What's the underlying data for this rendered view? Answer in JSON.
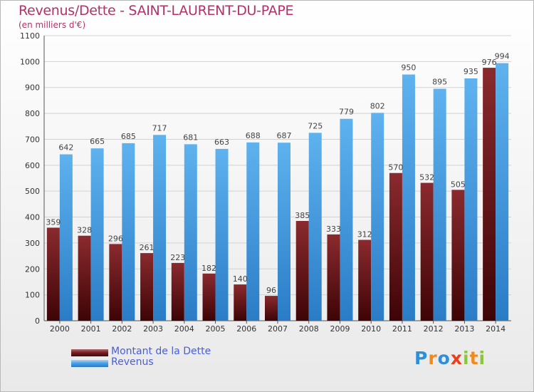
{
  "header": {
    "title": "Revenus/Dette - SAINT-LAURENT-DU-PAPE",
    "subtitle": "(en milliers d'€)"
  },
  "chart_data": {
    "type": "bar",
    "categories": [
      "2000",
      "2001",
      "2002",
      "2003",
      "2004",
      "2005",
      "2006",
      "2007",
      "2008",
      "2009",
      "2010",
      "2011",
      "2012",
      "2013",
      "2014"
    ],
    "series": [
      {
        "name": "Montant de la Dette",
        "color": "#7a1e22",
        "values": [
          359,
          328,
          296,
          261,
          223,
          182,
          140,
          96,
          385,
          333,
          312,
          570,
          532,
          505,
          976
        ]
      },
      {
        "name": "Revenus",
        "color": "#4aa3e8",
        "values": [
          642,
          665,
          685,
          717,
          681,
          663,
          688,
          687,
          725,
          779,
          802,
          950,
          895,
          935,
          994
        ]
      }
    ],
    "ylim": [
      0,
      1100
    ],
    "yticks": [
      0,
      100,
      200,
      300,
      400,
      500,
      600,
      700,
      800,
      900,
      1000,
      1100
    ],
    "grid": true,
    "legend": "bottom-left"
  },
  "legend": {
    "items": [
      {
        "label": "Montant de la Dette",
        "color": "#7a1e22"
      },
      {
        "label": "Revenus",
        "color": "#4aa3e8"
      }
    ]
  },
  "logo": {
    "letters": [
      "P",
      "r",
      "o",
      "x",
      "i",
      "t",
      "i"
    ],
    "colors": [
      "#2e8fd6",
      "#f08a1c",
      "#2e8fd6",
      "#e8401c",
      "#8cc63f",
      "#f08a1c",
      "#8cc63f"
    ]
  }
}
